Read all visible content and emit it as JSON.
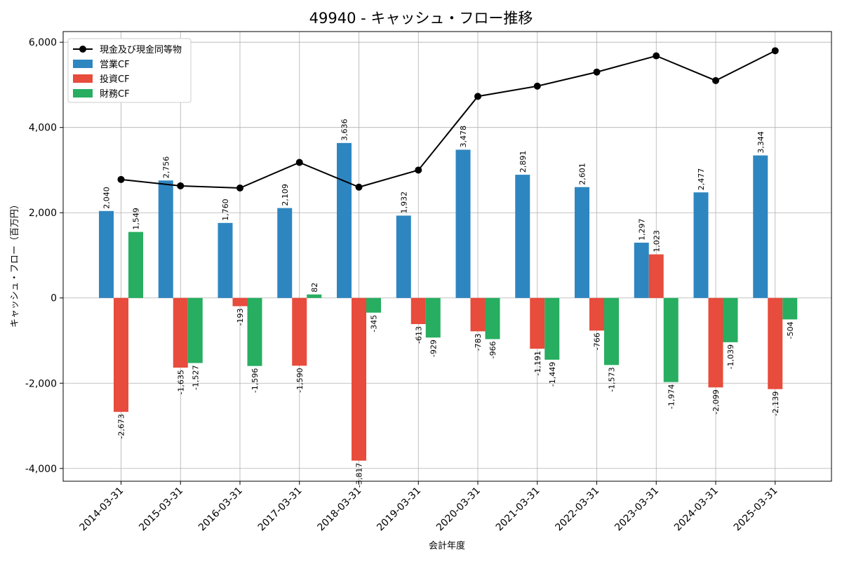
{
  "chart_data": {
    "type": "bar",
    "title": "49940 - キャッシュ・フロー推移",
    "xlabel": "会計年度",
    "ylabel": "キャッシュ・フロー（百万円）",
    "ylim": [
      -4300,
      6250
    ],
    "yticks": [
      -4000,
      -2000,
      0,
      2000,
      4000,
      6000
    ],
    "ytick_labels": [
      "-4,000",
      "-2,000",
      "0",
      "2,000",
      "4,000",
      "6,000"
    ],
    "grid": true,
    "legend_position": "top-left",
    "categories": [
      "2014-03-31",
      "2015-03-31",
      "2016-03-31",
      "2017-03-31",
      "2018-03-31",
      "2019-03-31",
      "2020-03-31",
      "2021-03-31",
      "2022-03-31",
      "2023-03-31",
      "2024-03-31",
      "2025-03-31"
    ],
    "series": [
      {
        "name": "営業CF",
        "type": "bar",
        "color": "#2e86c1",
        "values": [
          2040,
          2756,
          1760,
          2109,
          3636,
          1932,
          3478,
          2891,
          2601,
          1297,
          2477,
          3344
        ],
        "labels": [
          "2,040",
          "2,756",
          "1,760",
          "2,109",
          "3,636",
          "1,932",
          "3,478",
          "2,891",
          "2,601",
          "1,297",
          "2,477",
          "3,344"
        ]
      },
      {
        "name": "投資CF",
        "type": "bar",
        "color": "#e74c3c",
        "values": [
          -2673,
          -1635,
          -193,
          -1590,
          -3817,
          -613,
          -783,
          -1191,
          -766,
          1023,
          -2099,
          -2139
        ],
        "labels": [
          "-2,673",
          "-1,635",
          "-193",
          "-1,590",
          "-3,817",
          "-613",
          "-783",
          "-1,191",
          "-766",
          "1,023",
          "-2,099",
          "-2,139"
        ]
      },
      {
        "name": "財務CF",
        "type": "bar",
        "color": "#27ae60",
        "values": [
          1549,
          -1527,
          -1596,
          82,
          -345,
          -929,
          -966,
          -1449,
          -1573,
          -1974,
          -1039,
          -504
        ],
        "labels": [
          "1,549",
          "-1,527",
          "-1,596",
          "82",
          "-345",
          "-929",
          "-966",
          "-1,449",
          "-1,573",
          "-1,974",
          "-1,039",
          "-504"
        ]
      },
      {
        "name": "現金及び現金同等物",
        "type": "line",
        "color": "#000000",
        "values": [
          2780,
          2630,
          2580,
          3180,
          2600,
          3000,
          4730,
          4970,
          5300,
          5680,
          5100,
          5800
        ]
      }
    ]
  }
}
